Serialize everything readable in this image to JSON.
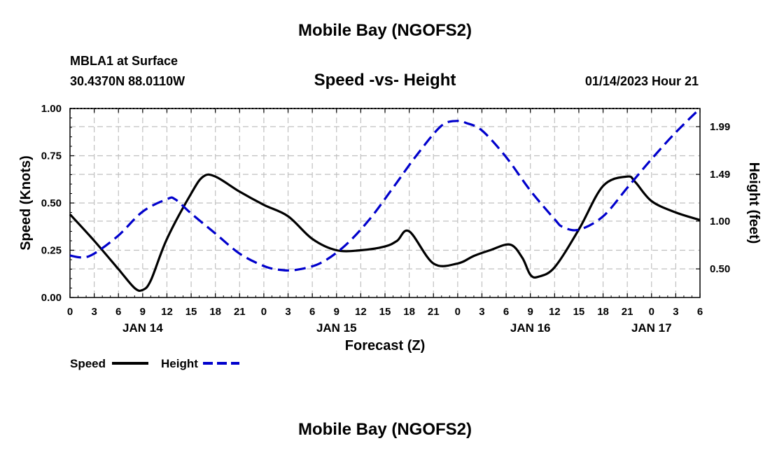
{
  "header": {
    "title": "Mobile Bay (NGOFS2)",
    "station": "MBLA1 at Surface",
    "coords": "30.4370N  88.0110W",
    "datetime": "01/14/2023 Hour 21",
    "bottom_title": "Mobile Bay (NGOFS2)"
  },
  "chart_data": {
    "type": "line",
    "title": "Speed -vs- Height",
    "xlabel": "Forecast (Z)",
    "ylabel": "Speed (Knots)",
    "y2label": "Height (feet)",
    "xlim": [
      0,
      78
    ],
    "ylim": [
      0,
      1
    ],
    "y2lim": [
      0.2,
      2.18
    ],
    "x_tick_labels": [
      "0",
      "3",
      "6",
      "9",
      "12",
      "15",
      "18",
      "21",
      "0",
      "3",
      "6",
      "9",
      "12",
      "15",
      "18",
      "21",
      "0",
      "3",
      "6",
      "9",
      "12",
      "15",
      "18",
      "21",
      "0",
      "3",
      "6"
    ],
    "date_labels": [
      {
        "label": "JAN 14",
        "x": 9
      },
      {
        "label": "JAN 15",
        "x": 33
      },
      {
        "label": "JAN 16",
        "x": 57
      },
      {
        "label": "JAN 17",
        "x": 72
      }
    ],
    "y_ticks": [
      "0.00",
      "0.25",
      "0.50",
      "0.75",
      "1.00"
    ],
    "y2_ticks": [
      {
        "label": "0.50",
        "value": 0.5
      },
      {
        "label": "1.00",
        "value": 1.0
      },
      {
        "label": "1.49",
        "value": 1.49
      },
      {
        "label": "1.99",
        "value": 1.99
      }
    ],
    "series": [
      {
        "name": "Speed",
        "axis": "left",
        "color": "#000000",
        "x": [
          0,
          3,
          6,
          8,
          9,
          10,
          12,
          15,
          16.5,
          18,
          21,
          24,
          27,
          30,
          33,
          36,
          39,
          40.5,
          42,
          45,
          48,
          50,
          52,
          54.5,
          56,
          57,
          58,
          60,
          63,
          66,
          69,
          70,
          72,
          75,
          78
        ],
        "values": [
          0.44,
          0.3,
          0.15,
          0.05,
          0.04,
          0.09,
          0.31,
          0.55,
          0.64,
          0.64,
          0.56,
          0.49,
          0.43,
          0.31,
          0.25,
          0.25,
          0.27,
          0.3,
          0.35,
          0.18,
          0.18,
          0.22,
          0.25,
          0.28,
          0.21,
          0.12,
          0.11,
          0.16,
          0.36,
          0.59,
          0.64,
          0.61,
          0.51,
          0.45,
          0.41
        ]
      },
      {
        "name": "Height",
        "axis": "right",
        "color": "#0000cc",
        "x": [
          0,
          1.5,
          3,
          6,
          9,
          12,
          13,
          15,
          18,
          21,
          24,
          26,
          28,
          31,
          34,
          37,
          40,
          43,
          46,
          48,
          49,
          51,
          54,
          57,
          60,
          61,
          63,
          66,
          69,
          72,
          75,
          78
        ],
        "values": [
          0.64,
          0.62,
          0.66,
          0.85,
          1.1,
          1.23,
          1.23,
          1.08,
          0.87,
          0.66,
          0.53,
          0.49,
          0.49,
          0.56,
          0.74,
          1.01,
          1.35,
          1.7,
          2.0,
          2.05,
          2.03,
          1.95,
          1.67,
          1.32,
          1.02,
          0.94,
          0.91,
          1.05,
          1.35,
          1.65,
          1.93,
          2.18
        ]
      }
    ],
    "legend": [
      {
        "label": "Speed",
        "color": "#000000",
        "dash": false
      },
      {
        "label": "Height",
        "color": "#0000cc",
        "dash": true
      }
    ]
  }
}
